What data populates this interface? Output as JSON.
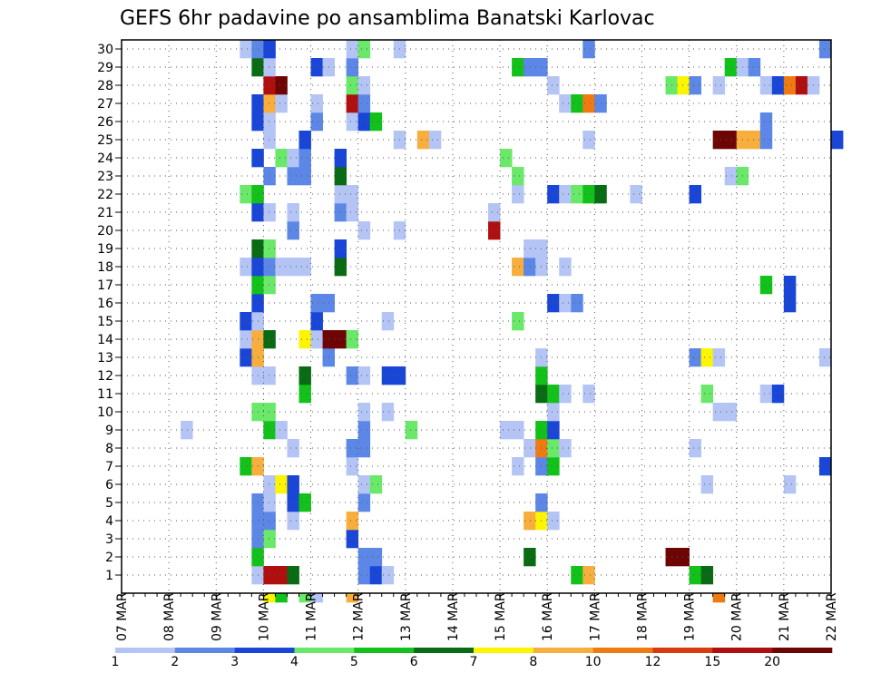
{
  "chart_data": {
    "type": "heatmap",
    "title": "GEFS 6hr padavine po ansamblima Banatski Karlovac",
    "x_ticks": [
      "07 MAR",
      "08 MAR",
      "09 MAR",
      "10 MAR",
      "11 MAR",
      "12 MAR",
      "13 MAR",
      "14 MAR",
      "15 MAR",
      "16 MAR",
      "17 MAR",
      "18 MAR",
      "19 MAR",
      "20 MAR",
      "21 MAR",
      "22 MAR"
    ],
    "y_ticks": [
      "1",
      "2",
      "3",
      "4",
      "5",
      "6",
      "7",
      "8",
      "9",
      "10",
      "11",
      "12",
      "13",
      "14",
      "15",
      "16",
      "17",
      "18",
      "19",
      "20",
      "21",
      "22",
      "23",
      "24",
      "25",
      "26",
      "27",
      "28",
      "29",
      "30"
    ],
    "ylim": [
      0,
      30
    ],
    "x_step": "6hr",
    "legend_labels": [
      "1",
      "2",
      "3",
      "4",
      "5",
      "6",
      "7",
      "8",
      "10",
      "12",
      "15",
      "20"
    ],
    "legend_colors": [
      "#b4c5f5",
      "#5d87e6",
      "#1a46d8",
      "#69e86a",
      "#12c21a",
      "#0a6b15",
      "#fdf400",
      "#f7ae3c",
      "#f07a12",
      "#d93b10",
      "#b00f0f",
      "#6e0505"
    ],
    "cells": [
      [
        12,
        0,
        7
      ],
      [
        13,
        0,
        5
      ],
      [
        15,
        0,
        4
      ],
      [
        16,
        0,
        1
      ],
      [
        19,
        0,
        8
      ],
      [
        50,
        0,
        9
      ],
      [
        11,
        1,
        1
      ],
      [
        12,
        1,
        11
      ],
      [
        13,
        1,
        11
      ],
      [
        14,
        1,
        6
      ],
      [
        20,
        1,
        2
      ],
      [
        21,
        1,
        3
      ],
      [
        22,
        1,
        1
      ],
      [
        38,
        1,
        5
      ],
      [
        39,
        1,
        8
      ],
      [
        48,
        1,
        5
      ],
      [
        49,
        1,
        6
      ],
      [
        11,
        2,
        5
      ],
      [
        20,
        2,
        2
      ],
      [
        21,
        2,
        2
      ],
      [
        46,
        2,
        12
      ],
      [
        47,
        2,
        12
      ],
      [
        34,
        2,
        6
      ],
      [
        11,
        3,
        2
      ],
      [
        12,
        3,
        4
      ],
      [
        19,
        3,
        3
      ],
      [
        11,
        4,
        2
      ],
      [
        12,
        4,
        2
      ],
      [
        14,
        4,
        1
      ],
      [
        19,
        4,
        8
      ],
      [
        34,
        4,
        8
      ],
      [
        35,
        4,
        7
      ],
      [
        36,
        4,
        1
      ],
      [
        11,
        5,
        2
      ],
      [
        12,
        5,
        1
      ],
      [
        14,
        5,
        3
      ],
      [
        15,
        5,
        5
      ],
      [
        20,
        5,
        2
      ],
      [
        35,
        5,
        2
      ],
      [
        12,
        6,
        1
      ],
      [
        13,
        6,
        7
      ],
      [
        14,
        6,
        3
      ],
      [
        20,
        6,
        1
      ],
      [
        21,
        6,
        4
      ],
      [
        49,
        6,
        1
      ],
      [
        56,
        6,
        1
      ],
      [
        10,
        7,
        5
      ],
      [
        11,
        7,
        8
      ],
      [
        19,
        7,
        1
      ],
      [
        33,
        7,
        1
      ],
      [
        35,
        7,
        2
      ],
      [
        36,
        7,
        5
      ],
      [
        59,
        7,
        3
      ],
      [
        14,
        8,
        1
      ],
      [
        19,
        8,
        2
      ],
      [
        20,
        8,
        2
      ],
      [
        34,
        8,
        1
      ],
      [
        35,
        8,
        9
      ],
      [
        36,
        8,
        4
      ],
      [
        37,
        8,
        1
      ],
      [
        48,
        8,
        1
      ],
      [
        5,
        9,
        1
      ],
      [
        12,
        9,
        5
      ],
      [
        13,
        9,
        1
      ],
      [
        20,
        9,
        2
      ],
      [
        24,
        9,
        4
      ],
      [
        32,
        9,
        1
      ],
      [
        33,
        9,
        1
      ],
      [
        35,
        9,
        5
      ],
      [
        36,
        9,
        3
      ],
      [
        11,
        10,
        4
      ],
      [
        12,
        10,
        4
      ],
      [
        20,
        10,
        1
      ],
      [
        22,
        10,
        1
      ],
      [
        36,
        10,
        1
      ],
      [
        50,
        10,
        1
      ],
      [
        51,
        10,
        1
      ],
      [
        15,
        11,
        5
      ],
      [
        35,
        11,
        6
      ],
      [
        36,
        11,
        5
      ],
      [
        37,
        11,
        1
      ],
      [
        39,
        11,
        1
      ],
      [
        49,
        11,
        4
      ],
      [
        54,
        11,
        1
      ],
      [
        55,
        11,
        3
      ],
      [
        11,
        12,
        1
      ],
      [
        12,
        12,
        1
      ],
      [
        15,
        12,
        6
      ],
      [
        19,
        12,
        2
      ],
      [
        20,
        12,
        1
      ],
      [
        22,
        12,
        3
      ],
      [
        23,
        12,
        3
      ],
      [
        35,
        12,
        5
      ],
      [
        10,
        13,
        3
      ],
      [
        11,
        13,
        8
      ],
      [
        17,
        13,
        2
      ],
      [
        35,
        13,
        1
      ],
      [
        48,
        13,
        2
      ],
      [
        49,
        13,
        7
      ],
      [
        50,
        13,
        1
      ],
      [
        59,
        13,
        1
      ],
      [
        10,
        14,
        1
      ],
      [
        11,
        14,
        8
      ],
      [
        12,
        14,
        6
      ],
      [
        15,
        14,
        7
      ],
      [
        16,
        14,
        1
      ],
      [
        17,
        14,
        12
      ],
      [
        18,
        14,
        12
      ],
      [
        19,
        14,
        4
      ],
      [
        10,
        15,
        3
      ],
      [
        11,
        15,
        1
      ],
      [
        16,
        15,
        3
      ],
      [
        22,
        15,
        1
      ],
      [
        33,
        15,
        4
      ],
      [
        11,
        16,
        3
      ],
      [
        16,
        16,
        2
      ],
      [
        17,
        16,
        2
      ],
      [
        36,
        16,
        3
      ],
      [
        37,
        16,
        1
      ],
      [
        38,
        16,
        2
      ],
      [
        56,
        16,
        3
      ],
      [
        11,
        17,
        5
      ],
      [
        12,
        17,
        4
      ],
      [
        54,
        17,
        5
      ],
      [
        56,
        17,
        3
      ],
      [
        10,
        18,
        1
      ],
      [
        11,
        18,
        3
      ],
      [
        12,
        18,
        2
      ],
      [
        13,
        18,
        1
      ],
      [
        14,
        18,
        1
      ],
      [
        15,
        18,
        1
      ],
      [
        18,
        18,
        6
      ],
      [
        33,
        18,
        8
      ],
      [
        34,
        18,
        2
      ],
      [
        35,
        18,
        1
      ],
      [
        37,
        18,
        1
      ],
      [
        11,
        19,
        6
      ],
      [
        12,
        19,
        4
      ],
      [
        18,
        19,
        3
      ],
      [
        34,
        19,
        1
      ],
      [
        35,
        19,
        1
      ],
      [
        14,
        20,
        2
      ],
      [
        20,
        20,
        1
      ],
      [
        23,
        20,
        1
      ],
      [
        31,
        20,
        11
      ],
      [
        11,
        21,
        3
      ],
      [
        12,
        21,
        1
      ],
      [
        14,
        21,
        1
      ],
      [
        18,
        21,
        2
      ],
      [
        19,
        21,
        1
      ],
      [
        31,
        21,
        1
      ],
      [
        10,
        22,
        4
      ],
      [
        11,
        22,
        5
      ],
      [
        18,
        22,
        1
      ],
      [
        19,
        22,
        1
      ],
      [
        33,
        22,
        1
      ],
      [
        36,
        22,
        3
      ],
      [
        37,
        22,
        1
      ],
      [
        38,
        22,
        4
      ],
      [
        39,
        22,
        5
      ],
      [
        40,
        22,
        6
      ],
      [
        43,
        22,
        1
      ],
      [
        48,
        22,
        3
      ],
      [
        12,
        23,
        2
      ],
      [
        14,
        23,
        2
      ],
      [
        15,
        23,
        2
      ],
      [
        18,
        23,
        6
      ],
      [
        33,
        23,
        4
      ],
      [
        51,
        23,
        1
      ],
      [
        52,
        23,
        4
      ],
      [
        11,
        24,
        3
      ],
      [
        13,
        24,
        4
      ],
      [
        14,
        24,
        1
      ],
      [
        15,
        24,
        2
      ],
      [
        18,
        24,
        3
      ],
      [
        32,
        24,
        4
      ],
      [
        12,
        25,
        1
      ],
      [
        15,
        25,
        3
      ],
      [
        23,
        25,
        1
      ],
      [
        25,
        25,
        8
      ],
      [
        26,
        25,
        1
      ],
      [
        39,
        25,
        1
      ],
      [
        50,
        25,
        12
      ],
      [
        51,
        25,
        12
      ],
      [
        52,
        25,
        8
      ],
      [
        53,
        25,
        8
      ],
      [
        54,
        25,
        2
      ],
      [
        60,
        25,
        3
      ],
      [
        11,
        26,
        3
      ],
      [
        12,
        26,
        1
      ],
      [
        16,
        26,
        2
      ],
      [
        19,
        26,
        1
      ],
      [
        20,
        26,
        3
      ],
      [
        21,
        26,
        5
      ],
      [
        54,
        26,
        2
      ],
      [
        11,
        27,
        3
      ],
      [
        12,
        27,
        8
      ],
      [
        13,
        27,
        1
      ],
      [
        16,
        27,
        1
      ],
      [
        19,
        27,
        11
      ],
      [
        20,
        27,
        2
      ],
      [
        37,
        27,
        1
      ],
      [
        38,
        27,
        5
      ],
      [
        39,
        27,
        9
      ],
      [
        40,
        27,
        2
      ],
      [
        12,
        28,
        11
      ],
      [
        13,
        28,
        12
      ],
      [
        19,
        28,
        4
      ],
      [
        20,
        28,
        1
      ],
      [
        36,
        28,
        1
      ],
      [
        46,
        28,
        4
      ],
      [
        47,
        28,
        7
      ],
      [
        48,
        28,
        2
      ],
      [
        50,
        28,
        1
      ],
      [
        54,
        28,
        1
      ],
      [
        55,
        28,
        3
      ],
      [
        56,
        28,
        9
      ],
      [
        57,
        28,
        11
      ],
      [
        58,
        28,
        1
      ],
      [
        11,
        29,
        6
      ],
      [
        12,
        29,
        1
      ],
      [
        16,
        29,
        3
      ],
      [
        17,
        29,
        1
      ],
      [
        19,
        29,
        2
      ],
      [
        33,
        29,
        5
      ],
      [
        34,
        29,
        2
      ],
      [
        35,
        29,
        2
      ],
      [
        51,
        29,
        5
      ],
      [
        52,
        29,
        1
      ],
      [
        53,
        29,
        2
      ],
      [
        10,
        30,
        1
      ],
      [
        11,
        30,
        2
      ],
      [
        12,
        30,
        3
      ],
      [
        19,
        30,
        1
      ],
      [
        20,
        30,
        4
      ],
      [
        23,
        30,
        1
      ],
      [
        39,
        30,
        2
      ],
      [
        59,
        30,
        2
      ]
    ]
  }
}
